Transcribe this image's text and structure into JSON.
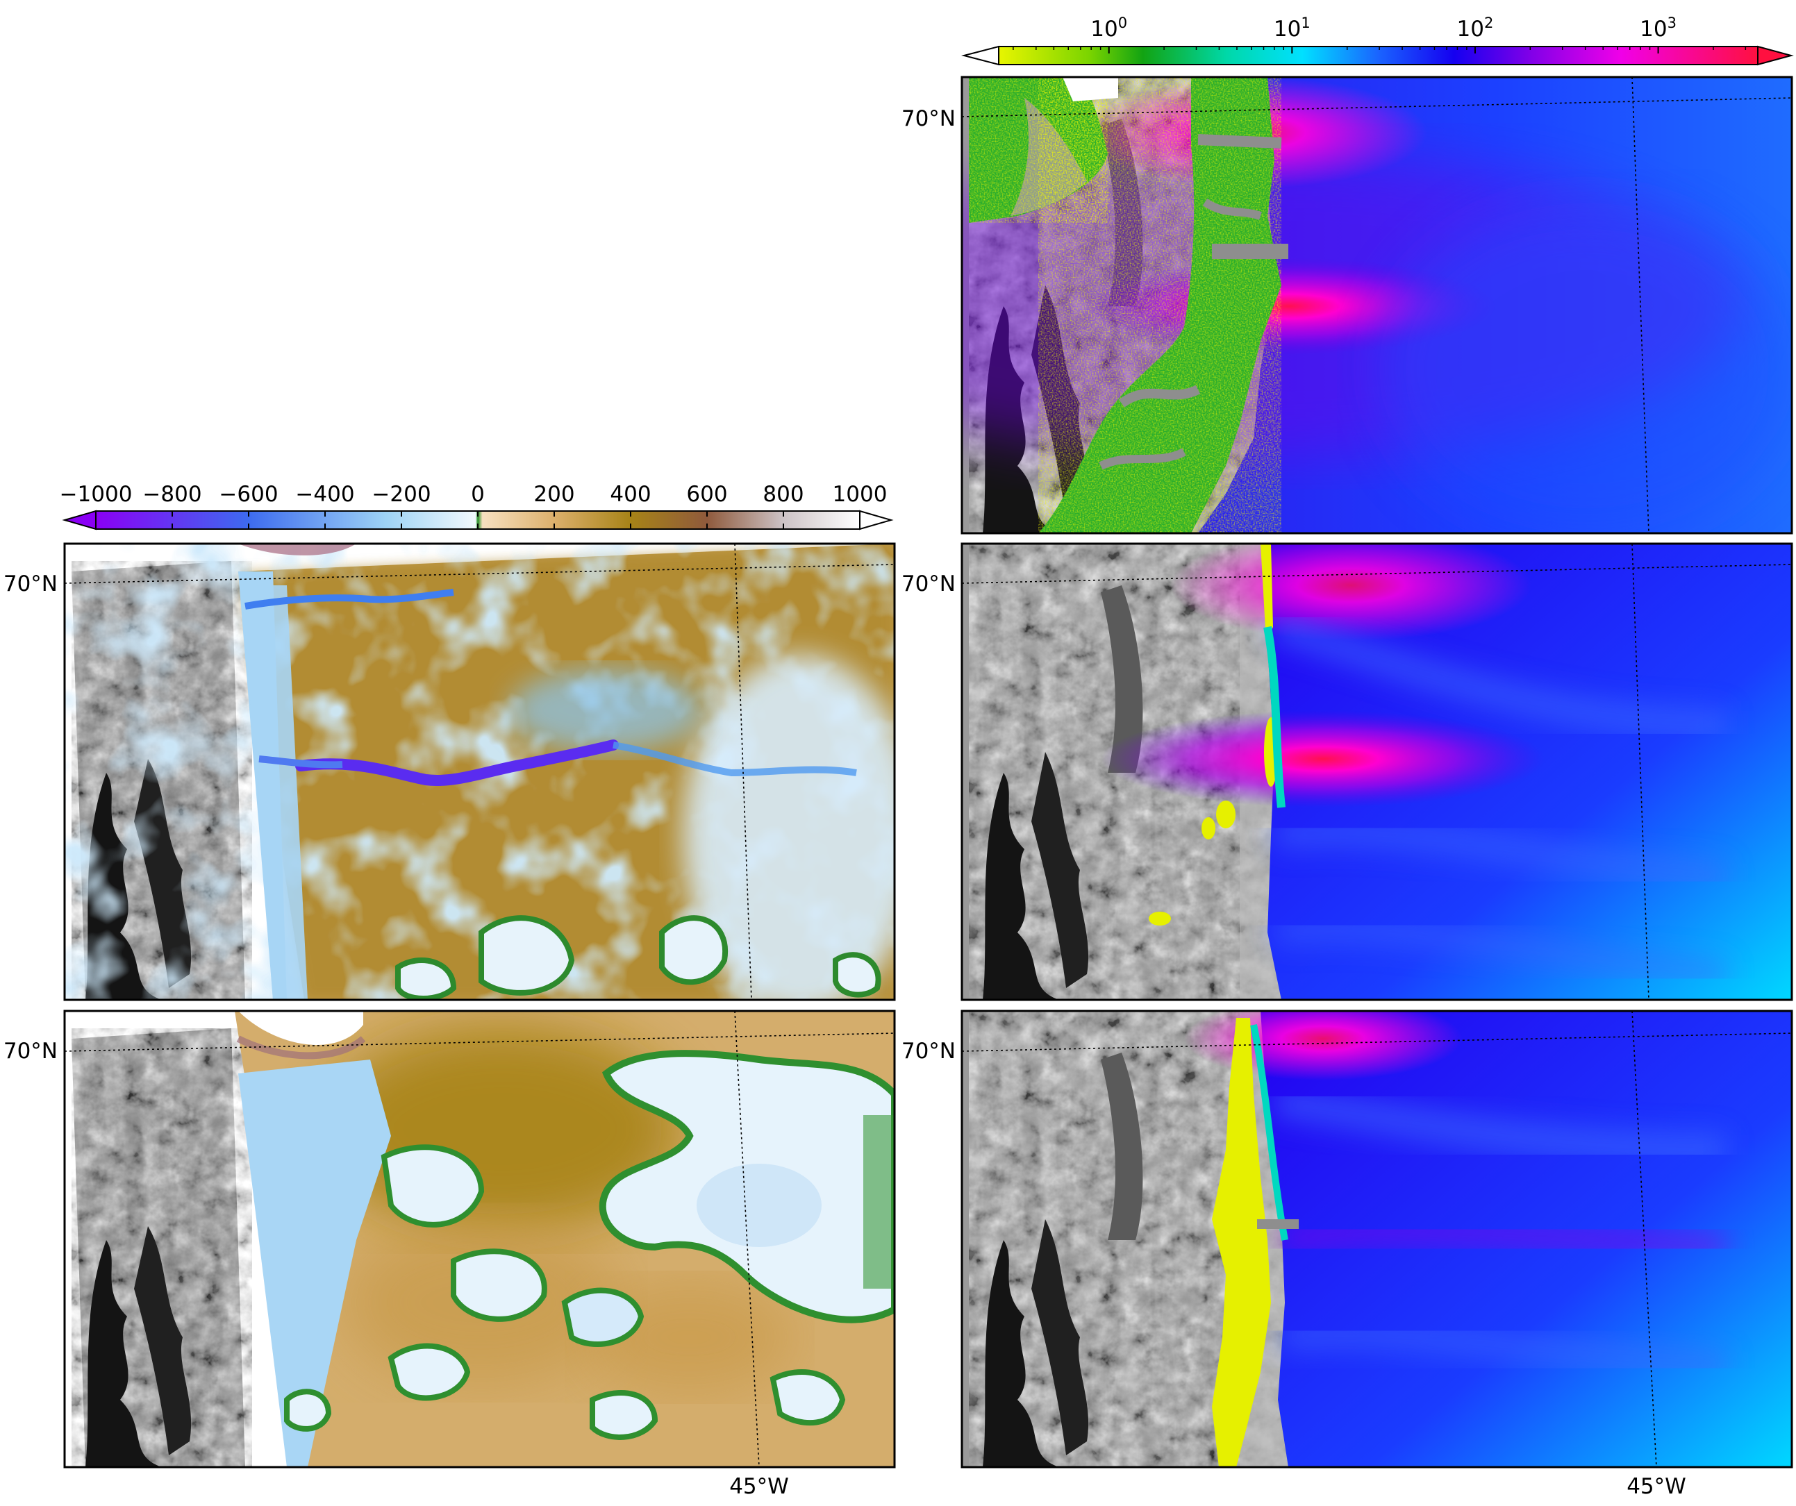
{
  "colorbars": {
    "linear": {
      "ticks": [
        "−1000",
        "−800",
        "−600",
        "−400",
        "−200",
        "0",
        "200",
        "400",
        "600",
        "800",
        "1000"
      ],
      "values": [
        -1000,
        -800,
        -600,
        -400,
        -200,
        0,
        200,
        400,
        600,
        800,
        1000
      ],
      "colors": [
        "#8a00f5",
        "#3d6bf0",
        "#9ed3f5",
        "#e9f6fd",
        "#2a9a2a",
        "#f5d8b0",
        "#a78317",
        "#9e7a4a",
        "#c9c0c4",
        "#ffffff"
      ]
    },
    "log": {
      "ticks": [
        {
          "base": "10",
          "exp": "0",
          "value": 1
        },
        {
          "base": "10",
          "exp": "1",
          "value": 10
        },
        {
          "base": "10",
          "exp": "2",
          "value": 100
        },
        {
          "base": "10",
          "exp": "3",
          "value": 1000
        }
      ],
      "range": [
        0.25,
        3500
      ],
      "colors": [
        "#e5f300",
        "#2ab82a",
        "#00e6c8",
        "#00d8ff",
        "#0050ff",
        "#1a00e8",
        "#9000e8",
        "#ff00e0",
        "#ff1050"
      ]
    }
  },
  "maps": {
    "lat_label": "70°N",
    "lon_label": "45°W",
    "panels": [
      {
        "id": "left-middle",
        "colormap": "linear",
        "lat_label": "70°N"
      },
      {
        "id": "left-bottom",
        "colormap": "linear",
        "lat_label": "70°N",
        "lon_label": "45°W"
      },
      {
        "id": "right-top",
        "colormap": "log",
        "lat_label": "70°N"
      },
      {
        "id": "right-middle",
        "colormap": "log",
        "lat_label": "70°N"
      },
      {
        "id": "right-bottom",
        "colormap": "log",
        "lat_label": "70°N",
        "lon_label": "45°W"
      }
    ]
  }
}
